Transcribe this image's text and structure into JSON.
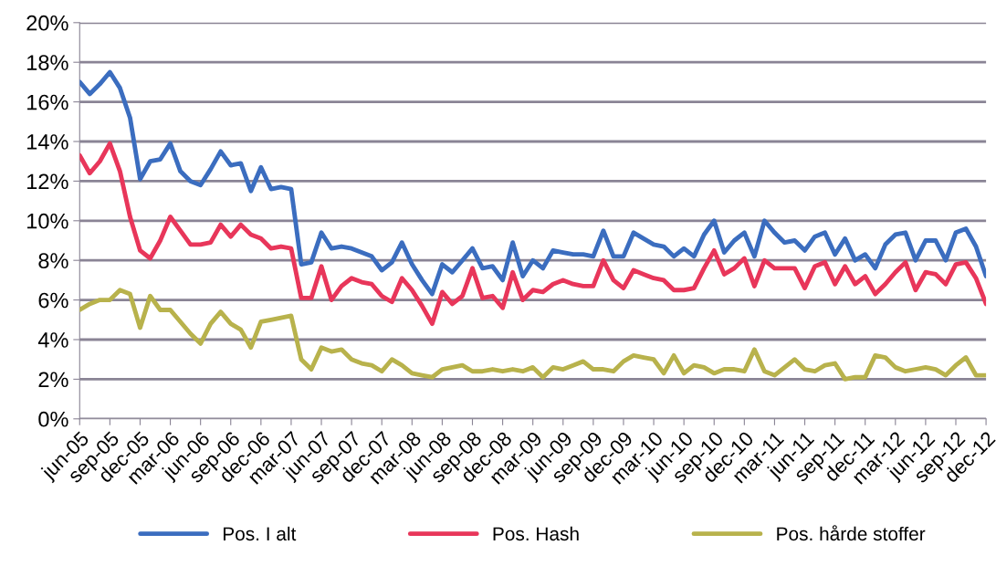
{
  "chart_data": {
    "type": "line",
    "categories": [
      "jun-05",
      null,
      null,
      "sep-05",
      null,
      null,
      "dec-05",
      null,
      null,
      "mar-06",
      null,
      null,
      "jun-06",
      null,
      null,
      "sep-06",
      null,
      null,
      "dec-06",
      null,
      null,
      "mar-07",
      null,
      null,
      "jun-07",
      null,
      null,
      "sep-07",
      null,
      null,
      "dec-07",
      null,
      null,
      "mar-08",
      null,
      null,
      "jun-08",
      null,
      null,
      "sep-08",
      null,
      null,
      "dec-08",
      null,
      null,
      "mar-09",
      null,
      null,
      "jun-09",
      null,
      null,
      "sep-09",
      null,
      null,
      "dec-09",
      null,
      null,
      "mar-10",
      null,
      null,
      "jun-10",
      null,
      null,
      "sep-10",
      null,
      null,
      "dec-10",
      null,
      null,
      "mar-11",
      null,
      null,
      "jun-11",
      null,
      null,
      "sep-11",
      null,
      null,
      "dec-11",
      null,
      null,
      "mar-12",
      null,
      null,
      "jun-12",
      null,
      null,
      "sep-12",
      null,
      null,
      "dec-12"
    ],
    "series": [
      {
        "name": "Pos. I alt",
        "color": "#3b6dbf",
        "values": [
          17.0,
          16.4,
          16.9,
          17.5,
          16.7,
          15.2,
          12.1,
          13.0,
          13.1,
          13.9,
          12.5,
          12.0,
          11.8,
          12.6,
          13.5,
          12.8,
          12.9,
          11.5,
          12.7,
          11.6,
          11.7,
          11.6,
          7.8,
          7.9,
          9.4,
          8.6,
          8.7,
          8.6,
          8.4,
          8.2,
          7.5,
          7.9,
          8.9,
          7.8,
          7.0,
          6.3,
          7.8,
          7.4,
          8.0,
          8.6,
          7.6,
          7.7,
          7.0,
          8.9,
          7.2,
          8.0,
          7.6,
          8.5,
          8.4,
          8.3,
          8.3,
          8.2,
          9.5,
          8.2,
          8.2,
          9.4,
          9.1,
          8.8,
          8.7,
          8.2,
          8.6,
          8.2,
          9.3,
          10.0,
          8.4,
          9.0,
          9.4,
          8.2,
          10.0,
          9.4,
          8.9,
          9.0,
          8.5,
          9.2,
          9.4,
          8.3,
          9.1,
          8.0,
          8.3,
          7.6,
          8.8,
          9.3,
          9.4,
          8.0,
          9.0,
          9.0,
          8.0,
          9.4,
          9.6,
          8.7,
          7.2
        ]
      },
      {
        "name": "Pos. Hash",
        "color": "#e8365a",
        "values": [
          13.3,
          12.4,
          13.0,
          13.9,
          12.5,
          10.2,
          8.5,
          8.1,
          9.0,
          10.2,
          9.5,
          8.8,
          8.8,
          8.9,
          9.8,
          9.2,
          9.8,
          9.3,
          9.1,
          8.6,
          8.7,
          8.6,
          6.1,
          6.1,
          7.7,
          6.0,
          6.7,
          7.1,
          6.9,
          6.8,
          6.2,
          5.9,
          7.1,
          6.5,
          5.7,
          4.8,
          6.4,
          5.8,
          6.2,
          7.6,
          6.1,
          6.2,
          5.6,
          7.4,
          6.0,
          6.5,
          6.4,
          6.8,
          7.0,
          6.8,
          6.7,
          6.7,
          8.0,
          7.0,
          6.6,
          7.5,
          7.3,
          7.1,
          7.0,
          6.5,
          6.5,
          6.6,
          7.6,
          8.5,
          7.3,
          7.6,
          8.1,
          6.7,
          8.0,
          7.6,
          7.6,
          7.6,
          6.6,
          7.7,
          7.9,
          6.8,
          7.7,
          6.8,
          7.2,
          6.3,
          6.8,
          7.4,
          7.9,
          6.5,
          7.4,
          7.3,
          6.8,
          7.8,
          7.9,
          7.1,
          5.8
        ]
      },
      {
        "name": "Pos. hårde stoffer",
        "color": "#b8b24c",
        "values": [
          5.5,
          5.8,
          6.0,
          6.0,
          6.5,
          6.3,
          4.6,
          6.2,
          5.5,
          5.5,
          4.9,
          4.3,
          3.8,
          4.8,
          5.4,
          4.8,
          4.5,
          3.6,
          4.9,
          5.0,
          5.1,
          5.2,
          3.0,
          2.5,
          3.6,
          3.4,
          3.5,
          3.0,
          2.8,
          2.7,
          2.4,
          3.0,
          2.7,
          2.3,
          2.2,
          2.1,
          2.5,
          2.6,
          2.7,
          2.4,
          2.4,
          2.5,
          2.4,
          2.5,
          2.4,
          2.6,
          2.1,
          2.6,
          2.5,
          2.7,
          2.9,
          2.5,
          2.5,
          2.4,
          2.9,
          3.2,
          3.1,
          3.0,
          2.3,
          3.2,
          2.3,
          2.7,
          2.6,
          2.3,
          2.5,
          2.5,
          2.4,
          3.5,
          2.4,
          2.2,
          2.6,
          3.0,
          2.5,
          2.4,
          2.7,
          2.8,
          2.0,
          2.1,
          2.1,
          3.2,
          3.1,
          2.6,
          2.4,
          2.5,
          2.6,
          2.5,
          2.2,
          2.7,
          3.1,
          2.2,
          2.2
        ]
      }
    ],
    "ylim": [
      0,
      20
    ],
    "yticks": [
      {
        "value": 0,
        "label": "0%"
      },
      {
        "value": 2,
        "label": "2%"
      },
      {
        "value": 4,
        "label": "4%"
      },
      {
        "value": 6,
        "label": "6%"
      },
      {
        "value": 8,
        "label": "8%"
      },
      {
        "value": 10,
        "label": "10%"
      },
      {
        "value": 12,
        "label": "12%"
      },
      {
        "value": 14,
        "label": "14%"
      },
      {
        "value": 16,
        "label": "16%"
      },
      {
        "value": 18,
        "label": "18%"
      },
      {
        "value": 20,
        "label": "20%"
      }
    ],
    "grid": "y",
    "legend": "bottom",
    "marker": "none",
    "line_style": "solid"
  }
}
